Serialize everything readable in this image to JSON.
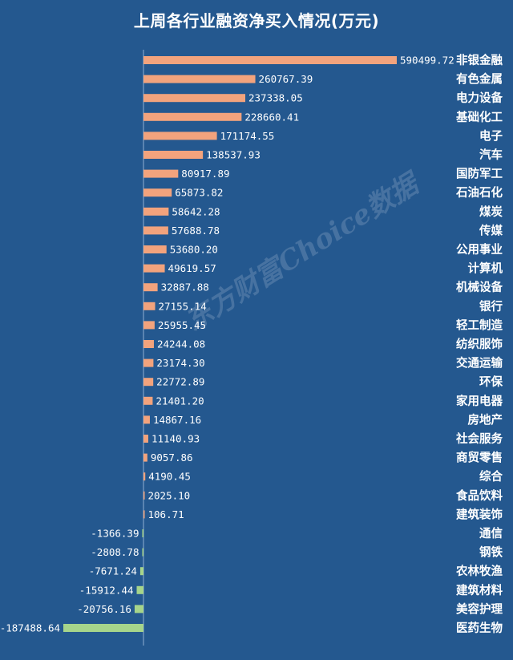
{
  "title": "上周各行业融资净买入情况(万元)",
  "watermark": "东方财富Choice数据",
  "colors": {
    "background": "#24588f",
    "positive": "#f2a37d",
    "negative": "#a6d58b",
    "axis": "#8fb0d3"
  },
  "chart_data": {
    "type": "bar",
    "orientation": "horizontal",
    "title": "上周各行业融资净买入情况(万元)",
    "categories": [
      "非银金融",
      "有色金属",
      "电力设备",
      "基础化工",
      "电子",
      "汽车",
      "国防军工",
      "石油石化",
      "煤炭",
      "传媒",
      "公用事业",
      "计算机",
      "机械设备",
      "银行",
      "轻工制造",
      "纺织服饰",
      "交通运输",
      "环保",
      "家用电器",
      "房地产",
      "社会服务",
      "商贸零售",
      "综合",
      "食品饮料",
      "建筑装饰",
      "通信",
      "钢铁",
      "农林牧渔",
      "建筑材料",
      "美容护理",
      "医药生物"
    ],
    "values": [
      590499.72,
      260767.39,
      237338.05,
      228660.41,
      171174.55,
      138537.93,
      80917.89,
      65873.82,
      58642.28,
      57688.78,
      53680.2,
      49619.57,
      32887.88,
      27155.14,
      25955.45,
      24244.08,
      23174.3,
      22772.89,
      21401.2,
      14867.16,
      11140.93,
      9057.86,
      4190.45,
      2025.1,
      106.71,
      -1366.39,
      -2808.78,
      -7671.24,
      -15912.44,
      -20756.16,
      -187488.64
    ],
    "value_labels": [
      "590499.72",
      "260767.39",
      "237338.05",
      "228660.41",
      "171174.55",
      "138537.93",
      "80917.89",
      "65873.82",
      "58642.28",
      "57688.78",
      "53680.20",
      "49619.57",
      "32887.88",
      "27155.14",
      "25955.45",
      "24244.08",
      "23174.30",
      "22772.89",
      "21401.20",
      "14867.16",
      "11140.93",
      "9057.86",
      "4190.45",
      "2025.10",
      "106.71",
      "-1366.39",
      "-2808.78",
      "-7671.24",
      "-15912.44",
      "-20756.16",
      "-187488.64"
    ],
    "xlim": [
      -187488.64,
      590499.72
    ],
    "grid": false,
    "legend": "none"
  }
}
